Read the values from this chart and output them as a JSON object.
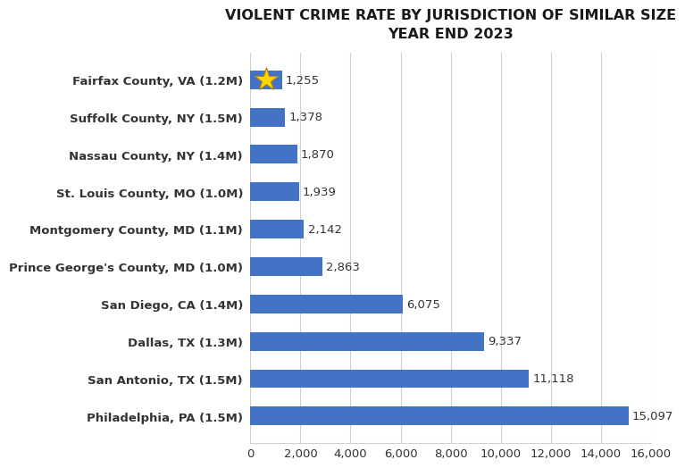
{
  "title_line1": "VIOLENT CRIME RATE BY JURISDICTION OF SIMILAR SIZE",
  "title_line2": "YEAR END 2023",
  "categories": [
    "Philadelphia, PA (1.5M)",
    "San Antonio, TX (1.5M)",
    "Dallas, TX (1.3M)",
    "San Diego, CA (1.4M)",
    "Prince George's County, MD (1.0M)",
    "Montgomery County, MD (1.1M)",
    "St. Louis County, MO (1.0M)",
    "Nassau County, NY (1.4M)",
    "Suffolk County, NY (1.5M)",
    "Fairfax County, VA (1.2M)"
  ],
  "values": [
    15097,
    11118,
    9337,
    6075,
    2863,
    2142,
    1939,
    1870,
    1378,
    1255
  ],
  "bar_color": "#4472C4",
  "highlight_index": 9,
  "xlim": [
    0,
    16000
  ],
  "xticks": [
    0,
    2000,
    4000,
    6000,
    8000,
    10000,
    12000,
    14000,
    16000
  ],
  "xtick_labels": [
    "0",
    "2,000",
    "4,000",
    "6,000",
    "8,000",
    "10,000",
    "12,000",
    "14,000",
    "16,000"
  ],
  "title_fontsize": 11.5,
  "label_fontsize": 9.5,
  "value_fontsize": 9.5,
  "background_color": "#ffffff",
  "grid_color": "#d0d0d0",
  "bar_height": 0.5,
  "star_color": "#FFD700",
  "star_edge_color": "#B8860B"
}
